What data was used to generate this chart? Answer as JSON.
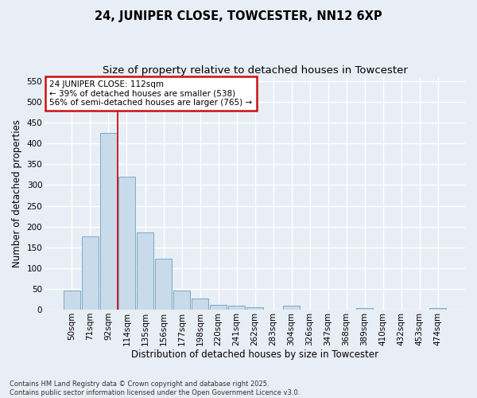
{
  "title": "24, JUNIPER CLOSE, TOWCESTER, NN12 6XP",
  "subtitle": "Size of property relative to detached houses in Towcester",
  "xlabel": "Distribution of detached houses by size in Towcester",
  "ylabel": "Number of detached properties",
  "categories": [
    "50sqm",
    "71sqm",
    "92sqm",
    "114sqm",
    "135sqm",
    "156sqm",
    "177sqm",
    "198sqm",
    "220sqm",
    "241sqm",
    "262sqm",
    "283sqm",
    "304sqm",
    "326sqm",
    "347sqm",
    "368sqm",
    "389sqm",
    "410sqm",
    "432sqm",
    "453sqm",
    "474sqm"
  ],
  "values": [
    46,
    177,
    425,
    320,
    185,
    122,
    46,
    26,
    12,
    10,
    5,
    0,
    10,
    0,
    0,
    0,
    4,
    0,
    0,
    0,
    3
  ],
  "bar_color": "#c9daea",
  "bar_edge_color": "#7aaac8",
  "annotation_text": "24 JUNIPER CLOSE: 112sqm\n← 39% of detached houses are smaller (538)\n56% of semi-detached houses are larger (765) →",
  "annotation_box_facecolor": "#ffffff",
  "annotation_box_edgecolor": "#cc1111",
  "vline_color": "#cc1111",
  "ylim": [
    0,
    560
  ],
  "yticks": [
    0,
    50,
    100,
    150,
    200,
    250,
    300,
    350,
    400,
    450,
    500,
    550
  ],
  "footer": "Contains HM Land Registry data © Crown copyright and database right 2025.\nContains public sector information licensed under the Open Government Licence v3.0.",
  "bg_color": "#e8eef5",
  "grid_color": "#ffffff",
  "title_fontsize": 10.5,
  "subtitle_fontsize": 9.5,
  "xlabel_fontsize": 8.5,
  "ylabel_fontsize": 8.5,
  "tick_fontsize": 7.5,
  "footer_fontsize": 6.0,
  "annot_fontsize": 7.5
}
